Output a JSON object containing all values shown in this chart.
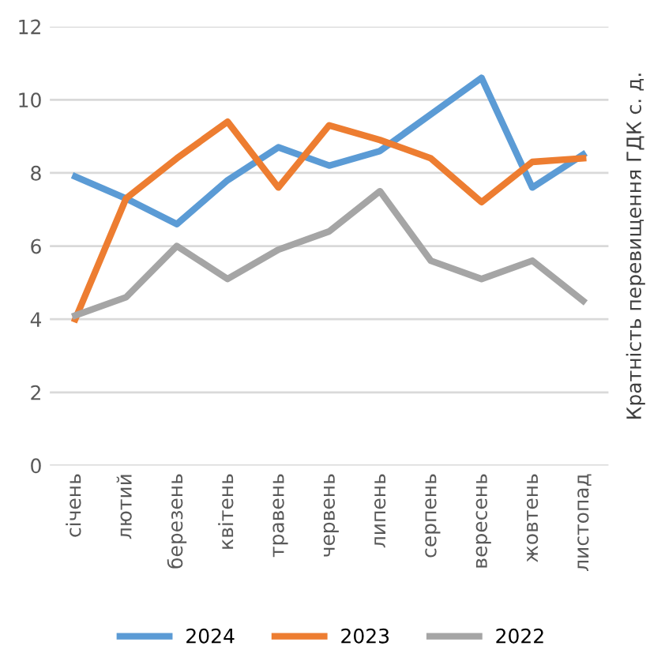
{
  "chart_data": {
    "type": "line",
    "ylabel": "Кратність перевищення ГДК с. д.",
    "categories": [
      "січень",
      "лютий",
      "березень",
      "квітень",
      "травень",
      "червень",
      "липень",
      "серпень",
      "вересень",
      "жовтень",
      "листопад"
    ],
    "series": [
      {
        "name": "2024",
        "color": "#5b9bd5",
        "values": [
          7.9,
          7.3,
          6.6,
          7.8,
          8.7,
          8.2,
          8.6,
          9.6,
          10.6,
          7.6,
          8.5
        ]
      },
      {
        "name": "2023",
        "color": "#ed7d31",
        "values": [
          4.0,
          7.3,
          8.4,
          9.4,
          7.6,
          9.3,
          8.9,
          8.4,
          7.2,
          8.3,
          8.4
        ]
      },
      {
        "name": "2022",
        "color": "#a5a5a5",
        "values": [
          4.1,
          4.6,
          6.0,
          5.1,
          5.9,
          6.4,
          7.5,
          5.6,
          5.1,
          5.6,
          4.5
        ]
      }
    ],
    "ylim": [
      0,
      12
    ],
    "yticks": [
      0,
      2,
      4,
      6,
      8,
      10,
      12
    ],
    "grid": "y",
    "legend": "bottom",
    "marker": "none",
    "line_style": "solid"
  }
}
